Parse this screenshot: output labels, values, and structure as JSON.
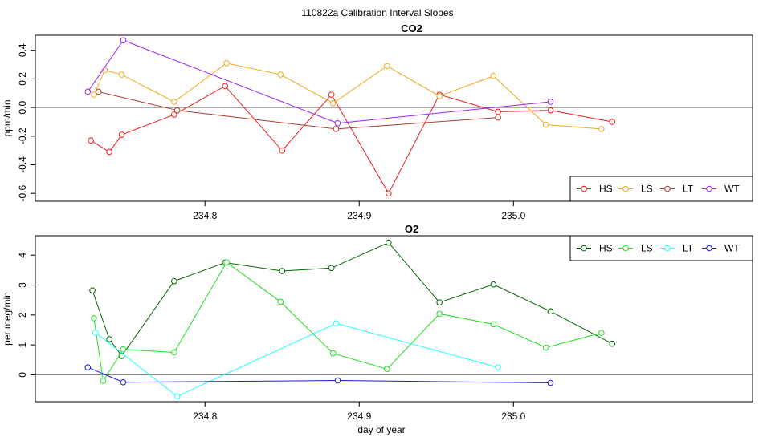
{
  "figure": {
    "title": "110822a   Calibration Interval Slopes",
    "xlabel": "day of year"
  },
  "chart_data": [
    {
      "type": "line",
      "title": "CO2",
      "xlabel": "",
      "ylabel": "ppm/min",
      "xlim": [
        234.69,
        235.155
      ],
      "ylim": [
        -0.655,
        0.505
      ],
      "xticks": [
        234.8,
        234.9,
        235.0
      ],
      "xtick_labels": [
        "234.8",
        "234.9",
        "235.0"
      ],
      "yticks": [
        -0.6,
        -0.4,
        -0.2,
        0.0,
        0.2,
        0.4
      ],
      "ytick_labels": [
        "-0.6",
        "-0.4",
        "-0.2",
        "0.0",
        "0.2",
        "0.4"
      ],
      "hline": 0,
      "legend_position": "bottom-right",
      "series": [
        {
          "name": "HS",
          "color": "#ee1c1c",
          "x": [
            234.726,
            234.738,
            234.746,
            234.78,
            234.813,
            234.85,
            234.882,
            234.919,
            234.952,
            234.99,
            235.024,
            235.064
          ],
          "y": [
            -0.23,
            -0.31,
            -0.19,
            -0.05,
            0.15,
            -0.3,
            0.09,
            -0.6,
            0.09,
            -0.03,
            -0.02,
            -0.1
          ]
        },
        {
          "name": "LS",
          "color": "#f2a819",
          "x": [
            234.728,
            234.735,
            234.746,
            234.78,
            234.814,
            234.849,
            234.883,
            234.918,
            234.952,
            234.987,
            235.021,
            235.057
          ],
          "y": [
            0.09,
            0.26,
            0.23,
            0.04,
            0.31,
            0.23,
            0.03,
            0.29,
            0.08,
            0.22,
            -0.12,
            -0.15
          ]
        },
        {
          "name": "LT",
          "color": "#b03a2e",
          "x": [
            234.731,
            234.782,
            234.885,
            234.99
          ],
          "y": [
            0.11,
            -0.02,
            -0.15,
            -0.07
          ]
        },
        {
          "name": "WT",
          "color": "#a020f0",
          "x": [
            234.724,
            234.747,
            234.886,
            235.024
          ],
          "y": [
            0.11,
            0.47,
            -0.11,
            0.04
          ]
        }
      ]
    },
    {
      "type": "line",
      "title": "O2",
      "xlabel": "day of year",
      "ylabel": "per meg/min",
      "xlim": [
        234.69,
        235.155
      ],
      "ylim": [
        -0.9,
        4.65
      ],
      "xticks": [
        234.8,
        234.9,
        235.0
      ],
      "xtick_labels": [
        "234.8",
        "234.9",
        "235.0"
      ],
      "yticks": [
        0,
        1,
        2,
        3,
        4
      ],
      "ytick_labels": [
        "0",
        "1",
        "2",
        "3",
        "4"
      ],
      "hline": 0,
      "legend_position": "top-right",
      "series": [
        {
          "name": "HS",
          "color": "#006400",
          "x": [
            234.727,
            234.738,
            234.746,
            234.78,
            234.813,
            234.85,
            234.882,
            234.919,
            234.952,
            234.987,
            235.024,
            235.064
          ],
          "y": [
            2.82,
            1.19,
            0.63,
            3.13,
            3.75,
            3.47,
            3.57,
            4.42,
            2.42,
            3.02,
            2.12,
            1.04
          ]
        },
        {
          "name": "LS",
          "color": "#22dd22",
          "x": [
            234.728,
            234.734,
            234.747,
            234.78,
            234.814,
            234.849,
            234.883,
            234.918,
            234.952,
            234.987,
            235.021,
            235.057
          ],
          "y": [
            1.89,
            -0.2,
            0.85,
            0.75,
            3.76,
            2.44,
            0.72,
            0.19,
            2.04,
            1.69,
            0.91,
            1.4
          ]
        },
        {
          "name": "LT",
          "color": "#22ffff",
          "x": [
            234.729,
            234.782,
            234.885,
            234.99
          ],
          "y": [
            1.41,
            -0.72,
            1.72,
            0.25
          ]
        },
        {
          "name": "WT",
          "color": "#1a1ad6",
          "x": [
            234.724,
            234.747,
            234.886,
            235.024
          ],
          "y": [
            0.25,
            -0.25,
            -0.19,
            -0.27
          ]
        }
      ]
    }
  ]
}
